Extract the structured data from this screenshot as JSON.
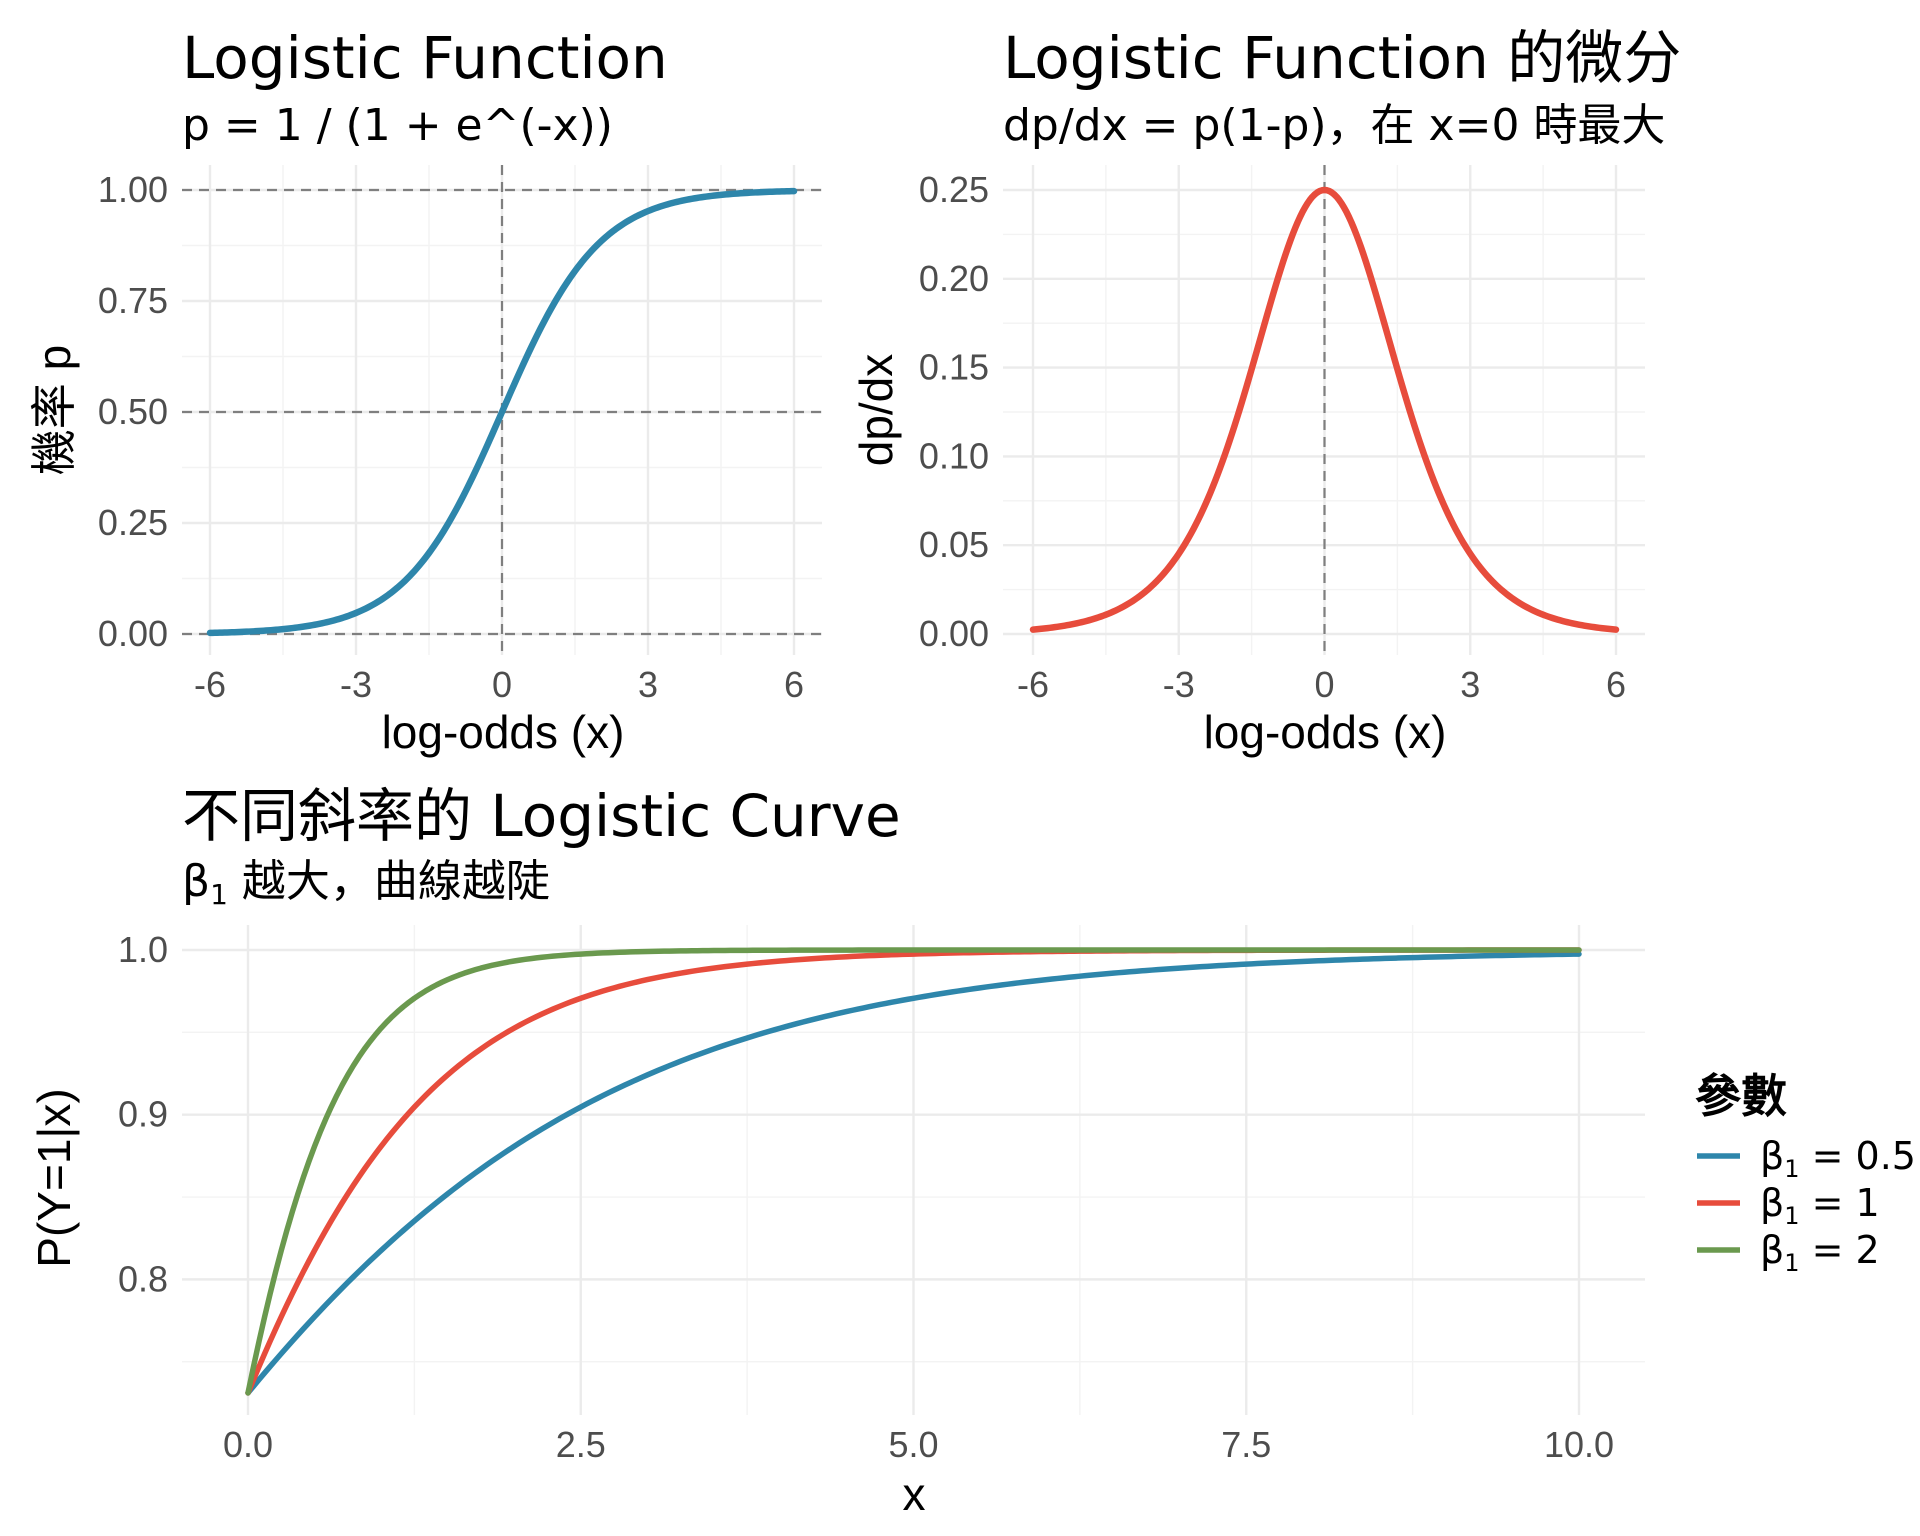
{
  "colors": {
    "blue": "#2E86AB",
    "red": "#E74C3C",
    "green": "#6A994E",
    "ref_line": "#7f7f7f",
    "grid": "#ebebeb"
  },
  "chart_data": [
    {
      "type": "line",
      "title": "Logistic Function",
      "subtitle": "p = 1 / (1 + e^(-x))",
      "xlabel": "log-odds (x)",
      "ylabel": "機率 p",
      "xlim": [
        -6,
        6
      ],
      "ylim": [
        0,
        1
      ],
      "x_ticks": [
        "-6",
        "-3",
        "0",
        "3",
        "6"
      ],
      "y_ticks": [
        "0.00",
        "0.25",
        "0.50",
        "0.75",
        "1.00"
      ],
      "reference_lines": {
        "hlines": [
          0,
          0.5,
          1
        ],
        "vlines": [
          0
        ],
        "style": "dashed"
      },
      "series": [
        {
          "color": "#2E86AB",
          "x": [
            -6,
            -5,
            -4,
            -3,
            -2,
            -1,
            0,
            1,
            2,
            3,
            4,
            5,
            6
          ],
          "y": [
            0.0025,
            0.0067,
            0.018,
            0.047,
            0.119,
            0.269,
            0.5,
            0.731,
            0.881,
            0.953,
            0.982,
            0.9933,
            0.9975
          ]
        }
      ]
    },
    {
      "type": "line",
      "title": "Logistic Function 的微分",
      "subtitle": "dp/dx = p(1-p)，在 x=0 時最大",
      "xlabel": "log-odds (x)",
      "ylabel": "dp/dx",
      "xlim": [
        -6,
        6
      ],
      "ylim": [
        0,
        0.25
      ],
      "x_ticks": [
        "-6",
        "-3",
        "0",
        "3",
        "6"
      ],
      "y_ticks": [
        "0.00",
        "0.05",
        "0.10",
        "0.15",
        "0.20",
        "0.25"
      ],
      "reference_lines": {
        "vlines": [
          0
        ],
        "style": "dashed"
      },
      "series": [
        {
          "color": "#E74C3C",
          "x": [
            -6,
            -5,
            -4,
            -3,
            -2,
            -1,
            0,
            1,
            2,
            3,
            4,
            5,
            6
          ],
          "y": [
            0.0025,
            0.0066,
            0.0177,
            0.0452,
            0.105,
            0.1966,
            0.25,
            0.1966,
            0.105,
            0.0452,
            0.0177,
            0.0066,
            0.0025
          ]
        }
      ]
    },
    {
      "type": "line",
      "title": "不同斜率的 Logistic Curve",
      "subtitle_main": "β",
      "subtitle_sub": "1",
      "subtitle_rest": " 越大，曲線越陡",
      "xlabel": "x",
      "ylabel": "P(Y=1|x)",
      "xlim": [
        0,
        10
      ],
      "ylim": [
        0.731,
        1.0
      ],
      "x_ticks": [
        "0.0",
        "2.5",
        "5.0",
        "7.5",
        "10.0"
      ],
      "y_ticks": [
        "0.8",
        "0.9",
        "1.0"
      ],
      "legend": {
        "title": "參數",
        "position": "right"
      },
      "series": [
        {
          "name_main": "β",
          "name_sub": "1",
          "name_rest": " = 0.5",
          "beta": 0.5,
          "color": "#2E86AB",
          "x": [
            0,
            1,
            2,
            3,
            4,
            5,
            6,
            7,
            8,
            9,
            10
          ],
          "y": [
            0.731,
            0.818,
            0.881,
            0.924,
            0.953,
            0.971,
            0.982,
            0.989,
            0.9933,
            0.9959,
            0.9975
          ]
        },
        {
          "name_main": "β",
          "name_sub": "1",
          "name_rest": " = 1",
          "beta": 1,
          "color": "#E74C3C",
          "x": [
            0,
            1,
            2,
            3,
            4,
            5,
            6,
            7,
            8,
            9,
            10
          ],
          "y": [
            0.731,
            0.881,
            0.953,
            0.982,
            0.9933,
            0.9975,
            0.9991,
            0.9997,
            0.9999,
            1.0,
            1.0
          ]
        },
        {
          "name_main": "β",
          "name_sub": "1",
          "name_rest": " = 2",
          "beta": 2,
          "color": "#6A994E",
          "x": [
            0,
            1,
            2,
            3,
            4,
            5,
            6,
            7,
            8,
            9,
            10
          ],
          "y": [
            0.731,
            0.953,
            0.9933,
            0.9991,
            0.9999,
            1.0,
            1.0,
            1.0,
            1.0,
            1.0,
            1.0
          ]
        }
      ]
    }
  ]
}
